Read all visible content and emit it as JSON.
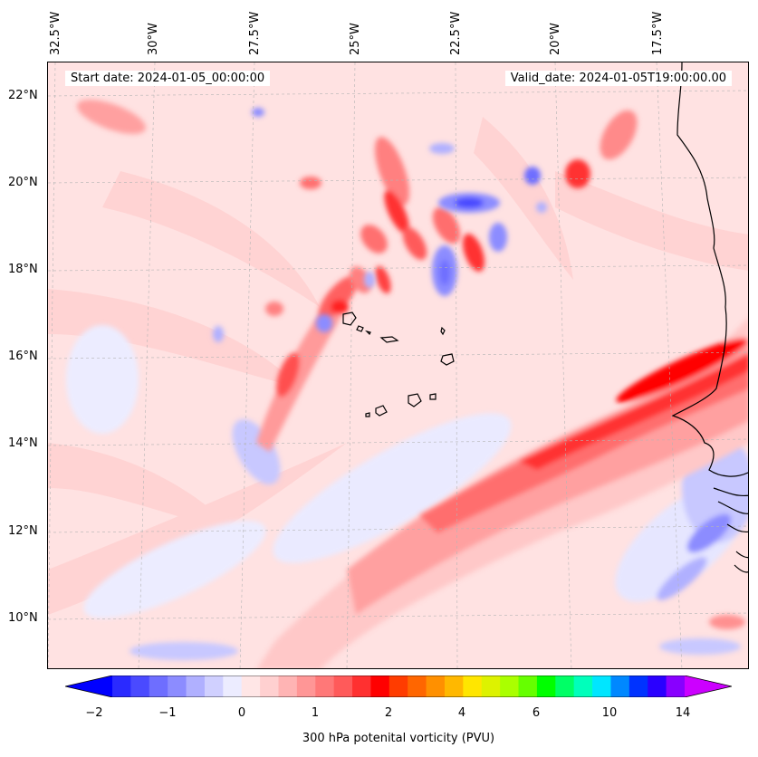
{
  "header": {
    "start_date": "Start date: 2024-01-05_00:00:00",
    "valid_date": "Valid_date: 2024-01-05T19:00:00.00"
  },
  "longitude_labels": [
    "32.5°W",
    "30°W",
    "27.5°W",
    "25°W",
    "22.5°W",
    "20°W",
    "17.5°W"
  ],
  "latitude_labels": [
    "22°N",
    "20°N",
    "18°N",
    "16°N",
    "14°N",
    "12°N",
    "10°N"
  ],
  "colorbar": {
    "title": "300 hPa potenital vorticity (PVU)",
    "tick_labels": [
      "−2",
      "−1",
      "0",
      "1",
      "2",
      "4",
      "6",
      "10",
      "14"
    ],
    "colors": [
      "#0000ff",
      "#2a2aff",
      "#4a4aff",
      "#6e6eff",
      "#8c8cff",
      "#b0b0ff",
      "#d0d0ff",
      "#ececff",
      "#ffe6e6",
      "#ffd0d0",
      "#ffb4b4",
      "#ff9696",
      "#ff7878",
      "#ff5a5a",
      "#ff3030",
      "#ff0000",
      "#ff3c00",
      "#ff6600",
      "#ff9000",
      "#ffb800",
      "#ffe600",
      "#ddf200",
      "#aaff00",
      "#66ff00",
      "#00ff00",
      "#00ff66",
      "#00ffbb",
      "#00e6ff",
      "#0088ff",
      "#0033ff",
      "#2a00ff",
      "#8800ff",
      "#cc00ff"
    ],
    "under_color": "#0000ff",
    "over_color": "#cc00ff"
  },
  "map": {
    "background_color": "#ffe2e2",
    "coastline_color": "#000000",
    "gridline_color": "#b4b4b4"
  }
}
